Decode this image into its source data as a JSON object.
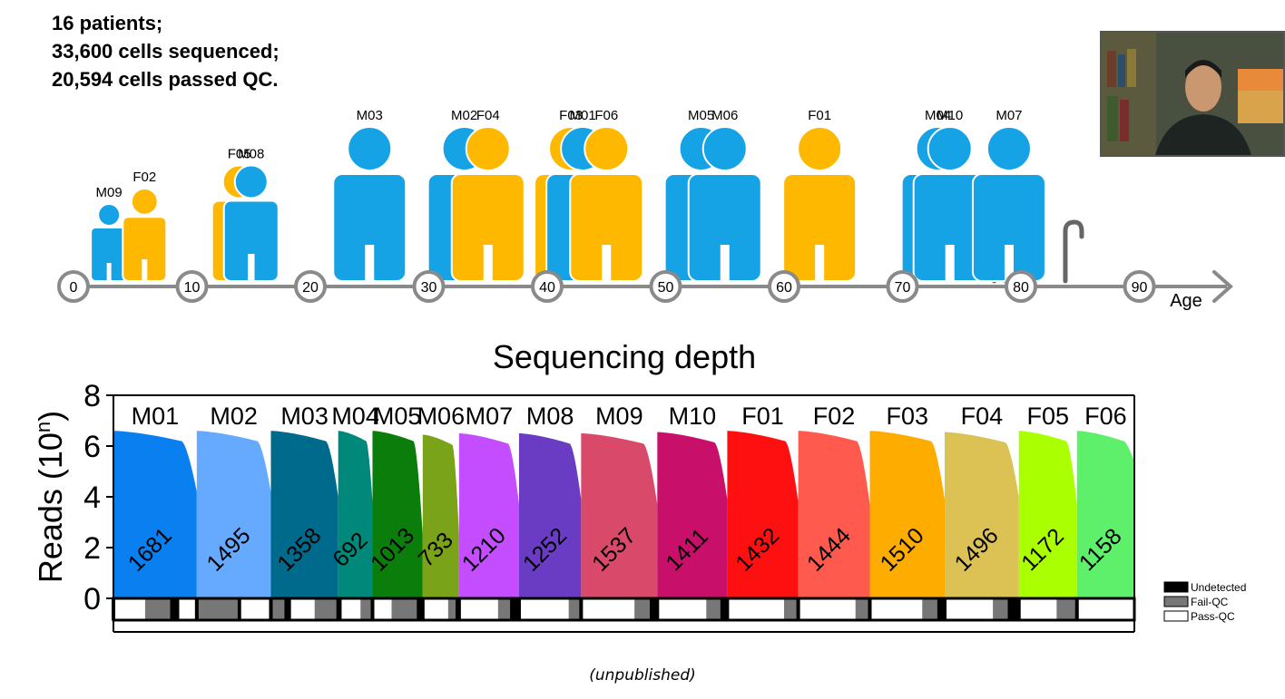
{
  "stats": [
    "16 patients;",
    "33,600 cells sequenced;",
    "20,594 cells passed QC."
  ],
  "timeline": {
    "ticks": [
      "0",
      "10",
      "20",
      "30",
      "40",
      "50",
      "60",
      "70",
      "80",
      "90"
    ],
    "axis_label": "Age",
    "colors": {
      "male": "#16a3e6",
      "female": "#ffb800",
      "axis": "#8a8a8a"
    },
    "patients": [
      {
        "label": "M09",
        "sex": "M",
        "age": 3
      },
      {
        "label": "F02",
        "sex": "F",
        "age": 6
      },
      {
        "label": "F05",
        "sex": "F",
        "age": 14
      },
      {
        "label": "M08",
        "sex": "M",
        "age": 15
      },
      {
        "label": "M03",
        "sex": "M",
        "age": 25
      },
      {
        "label": "M02",
        "sex": "M",
        "age": 33
      },
      {
        "label": "F04",
        "sex": "F",
        "age": 35
      },
      {
        "label": "F03",
        "sex": "F",
        "age": 42
      },
      {
        "label": "M01",
        "sex": "M",
        "age": 43
      },
      {
        "label": "F06",
        "sex": "F",
        "age": 45
      },
      {
        "label": "M05",
        "sex": "M",
        "age": 53
      },
      {
        "label": "M06",
        "sex": "M",
        "age": 55
      },
      {
        "label": "F01",
        "sex": "F",
        "age": 63
      },
      {
        "label": "M04",
        "sex": "M",
        "age": 73
      },
      {
        "label": "M10",
        "sex": "M",
        "age": 74
      },
      {
        "label": "M07",
        "sex": "M",
        "age": 79
      }
    ]
  },
  "chart_data": {
    "type": "area",
    "title": "Sequencing depth",
    "ylabel": "Reads (10ⁿ)",
    "ylabel_main": "Reads (10",
    "ylabel_sup": "n",
    "ylabel_close": ")",
    "ylim": [
      0,
      8
    ],
    "yticks": [
      "0",
      "2",
      "4",
      "6",
      "8"
    ],
    "categories": [
      "M01",
      "M02",
      "M03",
      "M04",
      "M05",
      "M06",
      "M07",
      "M08",
      "M09",
      "M10",
      "F01",
      "F02",
      "F03",
      "F04",
      "F05",
      "F06"
    ],
    "cell_counts": [
      "1681",
      "1495",
      "1358",
      "692",
      "1013",
      "733",
      "1210",
      "1252",
      "1537",
      "1411",
      "1432",
      "1444",
      "1510",
      "1496",
      "1172",
      "1158"
    ],
    "colors": [
      "#0a7ff0",
      "#66aaff",
      "#006a8c",
      "#00897b",
      "#0a7d0a",
      "#7aa31a",
      "#c44dff",
      "#6a3cc4",
      "#d9496a",
      "#c8106a",
      "#ff1010",
      "#ff5a4d",
      "#ffac00",
      "#dcc255",
      "#aaff00",
      "#5ef06a"
    ],
    "start_reads": [
      6.6,
      6.6,
      6.6,
      6.6,
      6.6,
      6.45,
      6.5,
      6.5,
      6.5,
      6.55,
      6.6,
      6.6,
      6.6,
      6.55,
      6.6,
      6.6
    ],
    "end_reads": [
      4.2,
      4.2,
      4.0,
      3.8,
      2.5,
      2.5,
      3.7,
      3.9,
      3.7,
      3.9,
      3.8,
      3.7,
      3.9,
      4.0,
      3.7,
      5.4
    ],
    "qc_bar": [
      {
        "status": "Pass-QC",
        "fraction": 0.38
      },
      {
        "status": "Fail-QC",
        "fraction": 0.3
      },
      {
        "status": "Undetected",
        "fraction": 0.11
      },
      {
        "status": "Pass-QC",
        "fraction": 0.4
      },
      {
        "status": "Fail-QC",
        "fraction": 0.55
      },
      {
        "status": "Undetected",
        "fraction": 0.05
      },
      {
        "status": "Pass-QC",
        "fraction": 0.7
      },
      {
        "status": "Fail-QC",
        "fraction": 0.2
      },
      {
        "status": "Undetected",
        "fraction": 0.1
      },
      {
        "status": "Pass-QC",
        "fraction": 0.35
      },
      {
        "status": "Fail-QC",
        "fraction": 0.55
      },
      {
        "status": "Undetected",
        "fraction": 0.1
      },
      {
        "status": "Pass-QC",
        "fraction": 0.55
      },
      {
        "status": "Fail-QC",
        "fraction": 0.3
      },
      {
        "status": "Undetected",
        "fraction": 0.15
      },
      {
        "status": "Pass-QC",
        "fraction": 0.38
      },
      {
        "status": "Fail-QC",
        "fraction": 0.5
      },
      {
        "status": "Undetected",
        "fraction": 0.12
      },
      {
        "status": "Pass-QC",
        "fraction": 0.7
      },
      {
        "status": "Fail-QC",
        "fraction": 0.2
      },
      {
        "status": "Undetected",
        "fraction": 0.1
      },
      {
        "status": "Pass-QC",
        "fraction": 0.65
      },
      {
        "status": "Fail-QC",
        "fraction": 0.2
      },
      {
        "status": "Undetected",
        "fraction": 0.15
      },
      {
        "status": "Pass-QC",
        "fraction": 0.8
      },
      {
        "status": "Fail-QC",
        "fraction": 0.2
      },
      {
        "status": "Pass-QC",
        "fraction": 0.7
      },
      {
        "status": "Fail-QC",
        "fraction": 0.2
      },
      {
        "status": "Undetected",
        "fraction": 0.1
      },
      {
        "status": "Pass-QC",
        "fraction": 0.7
      },
      {
        "status": "Fail-QC",
        "fraction": 0.2
      },
      {
        "status": "Undetected",
        "fraction": 0.1
      },
      {
        "status": "Pass-QC",
        "fraction": 0.8
      },
      {
        "status": "Fail-QC",
        "fraction": 0.2
      },
      {
        "status": "Pass-QC",
        "fraction": 0.8
      },
      {
        "status": "Fail-QC",
        "fraction": 0.2
      },
      {
        "status": "Pass-QC",
        "fraction": 0.7
      },
      {
        "status": "Fail-QC",
        "fraction": 0.2
      },
      {
        "status": "Undetected",
        "fraction": 0.1
      },
      {
        "status": "Pass-QC",
        "fraction": 0.65
      },
      {
        "status": "Fail-QC",
        "fraction": 0.2
      },
      {
        "status": "Undetected",
        "fraction": 0.15
      },
      {
        "status": "Pass-QC",
        "fraction": 0.65
      },
      {
        "status": "Fail-QC",
        "fraction": 0.35
      }
    ],
    "legend": [
      {
        "label": "Undetected",
        "color": "#000000"
      },
      {
        "label": "Fail-QC",
        "color": "#777777"
      },
      {
        "label": "Pass-QC",
        "color": "#ffffff"
      }
    ],
    "legend_position": "bottom-right"
  },
  "footer": "(unpublished)",
  "webcam": {
    "icon": "presenter-video-thumbnail"
  }
}
